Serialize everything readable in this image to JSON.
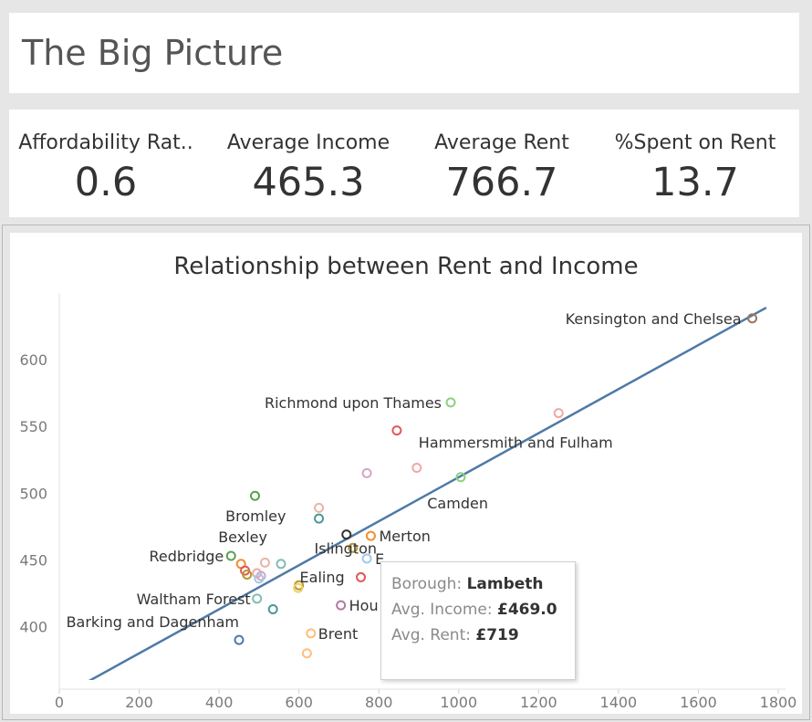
{
  "dashboard": {
    "title": "The Big Picture"
  },
  "kpis": [
    {
      "label": "Affordability Rat..",
      "value": "0.6"
    },
    {
      "label": "Average Income",
      "value": "465.3"
    },
    {
      "label": "Average Rent",
      "value": "766.7"
    },
    {
      "label": "%Spent on Rent",
      "value": "13.7"
    }
  ],
  "chart_data": {
    "type": "scatter",
    "title": "Relationship between Rent and Income",
    "xlabel": "",
    "ylabel": "",
    "xlim": [
      0,
      1800
    ],
    "ylim": [
      360,
      650
    ],
    "x_ticks": [
      "0",
      "200",
      "400",
      "600",
      "800",
      "1000",
      "1200",
      "1400",
      "1600",
      "1800"
    ],
    "y_ticks": [
      "400",
      "450",
      "500",
      "550",
      "600"
    ],
    "grid": false,
    "trendline": {
      "x": [
        0,
        1770
      ],
      "y": [
        347,
        639
      ],
      "color": "#4e79a7"
    },
    "points": [
      {
        "x": 1735,
        "y": 631,
        "color": "#9c755f",
        "label": "Kensington and Chelsea"
      },
      {
        "x": 980,
        "y": 568,
        "color": "#8cd17d",
        "label": "Richmond upon Thames"
      },
      {
        "x": 1250,
        "y": 560,
        "color": "#f1a7a7",
        "label": ""
      },
      {
        "x": 845,
        "y": 547,
        "color": "#e15759",
        "label": ""
      },
      {
        "x": 895,
        "y": 519,
        "color": "#f1a7a7",
        "label": "Hammersmith and Fulham"
      },
      {
        "x": 770,
        "y": 515,
        "color": "#d4a6c8",
        "label": ""
      },
      {
        "x": 1005,
        "y": 512,
        "color": "#8cd17d",
        "label": "Camden"
      },
      {
        "x": 490,
        "y": 498,
        "color": "#59a14f",
        "label": "Bromley"
      },
      {
        "x": 650,
        "y": 489,
        "color": "#e8b5a8",
        "label": "Islington"
      },
      {
        "x": 650,
        "y": 481,
        "color": "#499894",
        "label": ""
      },
      {
        "x": 719,
        "y": 469,
        "color": "#333333",
        "label": ""
      },
      {
        "x": 780,
        "y": 468,
        "color": "#f28e2b",
        "label": "Merton"
      },
      {
        "x": 735,
        "y": 459,
        "color": "#b6992d",
        "label": ""
      },
      {
        "x": 770,
        "y": 451,
        "color": "#a0cbe8",
        "label": "E"
      },
      {
        "x": 430,
        "y": 453,
        "color": "#59a14f",
        "label": "Redbridge"
      },
      {
        "x": 515,
        "y": 448,
        "color": "#e8b5a8",
        "label": ""
      },
      {
        "x": 555,
        "y": 447,
        "color": "#86bcb6",
        "label": "Bexley"
      },
      {
        "x": 455,
        "y": 447,
        "color": "#f28e2b",
        "label": ""
      },
      {
        "x": 465,
        "y": 442,
        "color": "#e15759",
        "label": ""
      },
      {
        "x": 470,
        "y": 439,
        "color": "#b6992d",
        "label": ""
      },
      {
        "x": 495,
        "y": 440,
        "color": "#f1a7a7",
        "label": ""
      },
      {
        "x": 505,
        "y": 438,
        "color": "#d4a6c8",
        "label": ""
      },
      {
        "x": 500,
        "y": 436,
        "color": "#a0cbe8",
        "label": ""
      },
      {
        "x": 755,
        "y": 437,
        "color": "#e15759",
        "label": ""
      },
      {
        "x": 600,
        "y": 431,
        "color": "#b6992d",
        "label": "Ealing"
      },
      {
        "x": 598,
        "y": 429,
        "color": "#f1ce63",
        "label": ""
      },
      {
        "x": 495,
        "y": 421,
        "color": "#86bcb6",
        "label": "Waltham Forest"
      },
      {
        "x": 535,
        "y": 413,
        "color": "#499894",
        "label": ""
      },
      {
        "x": 705,
        "y": 416,
        "color": "#b07aa1",
        "label": "Hou"
      },
      {
        "x": 630,
        "y": 395,
        "color": "#ffbe7d",
        "label": "Brent"
      },
      {
        "x": 450,
        "y": 390,
        "color": "#4e79a7",
        "label": "Barking and Dagenham"
      },
      {
        "x": 620,
        "y": 380,
        "color": "#ffbe7d",
        "label": ""
      }
    ]
  },
  "tooltip": {
    "borough_label": "Borough:",
    "borough_value": "Lambeth",
    "income_label": "Avg. Income:",
    "income_value": "£469.0",
    "rent_label": "Avg. Rent:",
    "rent_value": "£719"
  }
}
